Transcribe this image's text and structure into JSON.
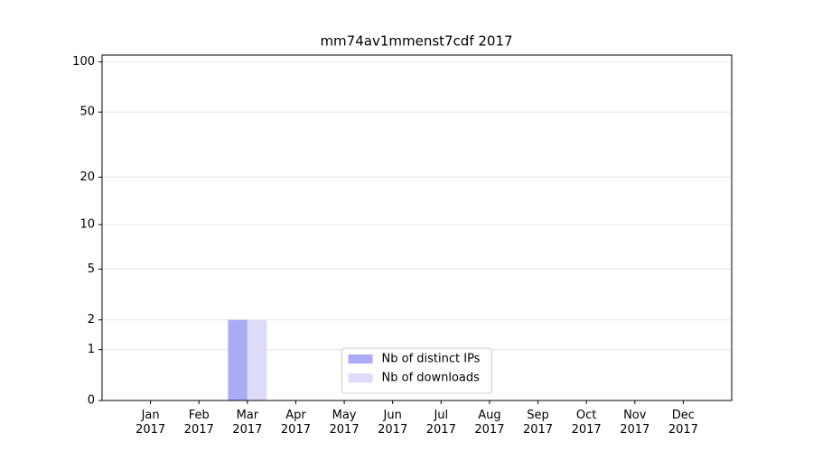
{
  "chart_data": {
    "type": "bar",
    "title": "mm74av1mmenst7cdf 2017",
    "categories": [
      "Jan 2017",
      "Feb 2017",
      "Mar 2017",
      "Apr 2017",
      "May 2017",
      "Jun 2017",
      "Jul 2017",
      "Aug 2017",
      "Sep 2017",
      "Oct 2017",
      "Nov 2017",
      "Dec 2017"
    ],
    "series": [
      {
        "name": "Nb of distinct IPs",
        "color": "#aaaaf6",
        "values": [
          0,
          0,
          2,
          0,
          0,
          0,
          0,
          0,
          0,
          0,
          0,
          0
        ]
      },
      {
        "name": "Nb of downloads",
        "color": "#dcdcfa",
        "values": [
          0,
          0,
          2,
          0,
          0,
          0,
          0,
          0,
          0,
          0,
          0,
          0
        ]
      }
    ],
    "yscale": "log1p",
    "ylim": [
      0,
      110
    ],
    "yticks": [
      0,
      1,
      2,
      5,
      10,
      20,
      50,
      100
    ],
    "grid": true,
    "legend": "lower center"
  }
}
